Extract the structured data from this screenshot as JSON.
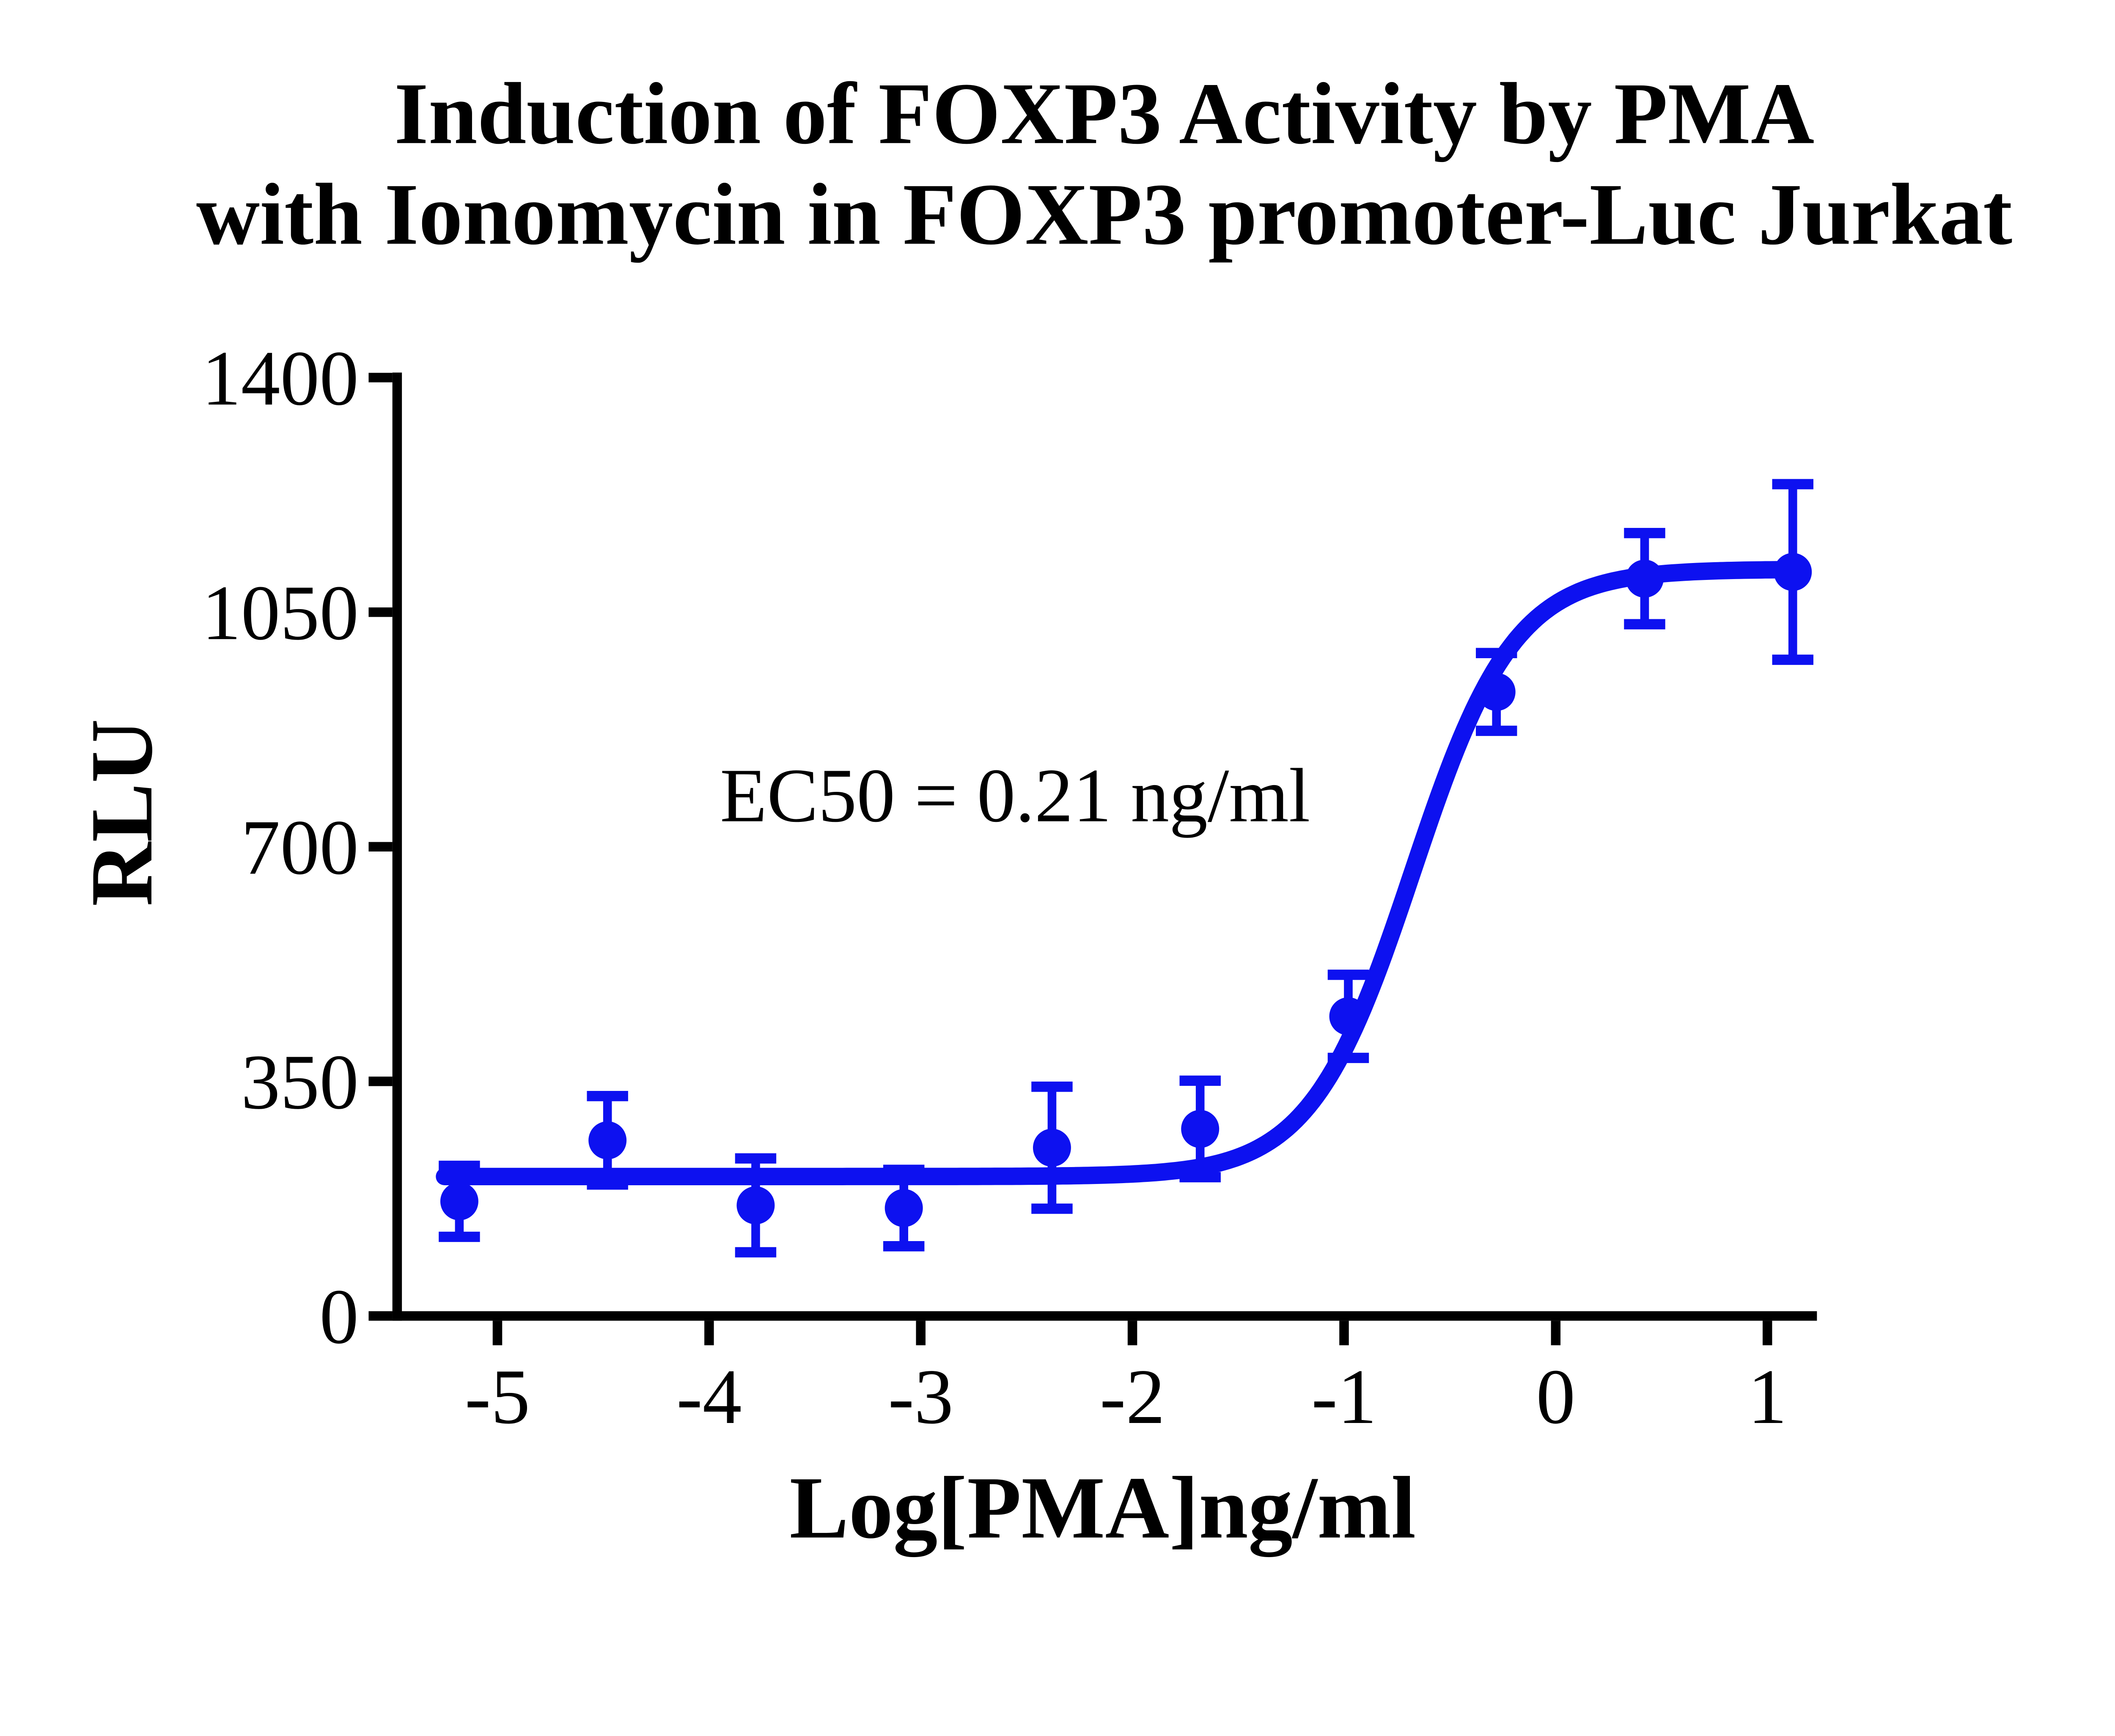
{
  "title": {
    "line1": "Induction of FOXP3 Activity by PMA",
    "line2": "with Ionomycin in FOXP3 promoter-Luc Jurkat"
  },
  "y_axis": {
    "label": "RLU",
    "tick_labels": [
      "0",
      "350",
      "700",
      "1050",
      "1400"
    ]
  },
  "x_axis": {
    "label": "Log[PMA]ng/ml",
    "tick_labels": [
      "-5",
      "-4",
      "-3",
      "-2",
      "-1",
      "0",
      "1"
    ]
  },
  "annotation": {
    "ec50_text": "EC50 = 0.21 ng/ml"
  },
  "chart_data": {
    "type": "scatter",
    "title": "Induction of FOXP3 Activity by PMA with Ionomycin in FOXP3 promoter-Luc Jurkat",
    "xlabel": "Log[PMA]ng/ml",
    "ylabel": "RLU",
    "x": [
      -5.18,
      -4.48,
      -3.78,
      -3.08,
      -2.38,
      -1.68,
      -0.98,
      -0.28,
      0.42,
      1.12
    ],
    "y": [
      171,
      262,
      165,
      161,
      251,
      279,
      447,
      931,
      1100,
      1110
    ],
    "yerr": [
      53,
      66,
      70,
      57,
      91,
      72,
      62,
      58,
      68,
      131
    ],
    "fit": {
      "model": "sigmoidal-dose-response-4PL",
      "bottom": 208,
      "top": 1114,
      "logEC50": -0.678,
      "hill": 1.8,
      "ec50_value_ng_ml": 0.21,
      "curve_x_start": -5.25,
      "curve_x_end": 1.12
    },
    "xticks": [
      -5,
      -4,
      -3,
      -2,
      -1,
      0,
      1
    ],
    "yticks": [
      0,
      350,
      700,
      1050,
      1400
    ],
    "xlim": [
      -5.6,
      1.25
    ],
    "ylim": [
      0,
      1400
    ],
    "grid": false,
    "legend_position": "none",
    "colors": {
      "series": "#0d11f0",
      "axis": "#000000",
      "text": "#000000",
      "background": "#ffffff"
    }
  }
}
